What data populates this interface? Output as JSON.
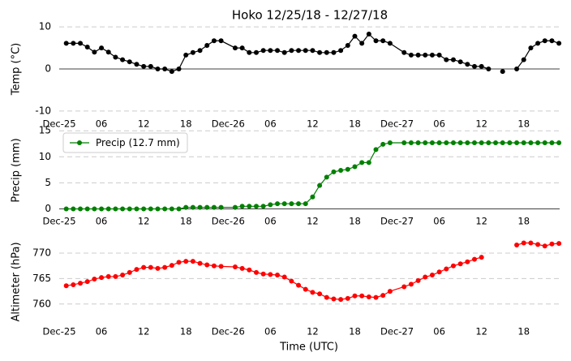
{
  "chart_data": [
    {
      "type": "line",
      "title": "Hoko 12/25/18 - 12/27/18",
      "ylabel": "Temp (°C)",
      "x": [
        1,
        2,
        3,
        4,
        5,
        6,
        7,
        8,
        9,
        10,
        11,
        12,
        13,
        14,
        15,
        16,
        17,
        18,
        19,
        20,
        21,
        22,
        23,
        25,
        26,
        27,
        28,
        29,
        30,
        31,
        32,
        33,
        34,
        35,
        36,
        37,
        38,
        39,
        40,
        41,
        42,
        43,
        44,
        45,
        46,
        47,
        49,
        50,
        51,
        52,
        53,
        54,
        55,
        56,
        57,
        58,
        59,
        60,
        61,
        62,
        63,
        64,
        65,
        66,
        67,
        68,
        69,
        70,
        71
      ],
      "series": [
        {
          "color": "#000000",
          "values": [
            6.1,
            6.1,
            6.1,
            5.2,
            4.0,
            5.0,
            4.0,
            2.8,
            2.2,
            1.7,
            1.1,
            0.6,
            0.6,
            0.0,
            0.0,
            -0.6,
            0.0,
            3.3,
            3.9,
            4.4,
            5.6,
            6.7,
            6.7,
            5.0,
            5.0,
            3.9,
            3.9,
            4.4,
            4.4,
            4.4,
            3.9,
            4.4,
            4.4,
            4.4,
            4.4,
            3.9,
            3.9,
            3.9,
            4.4,
            5.6,
            7.8,
            6.1,
            8.3,
            6.7,
            6.7,
            6.1,
            3.9,
            3.3,
            3.3,
            3.3,
            3.3,
            3.3,
            2.2,
            2.2,
            1.7,
            1.1,
            0.6,
            0.6,
            0.0,
            null,
            -0.6,
            null,
            0.0,
            2.2,
            5.0,
            6.1,
            6.7,
            6.7,
            6.1
          ]
        }
      ],
      "xlim": [
        0,
        71.1
      ],
      "xticks": [
        {
          "value": 0,
          "label": "Dec-25"
        },
        {
          "value": 6,
          "label": "06"
        },
        {
          "value": 12,
          "label": "12"
        },
        {
          "value": 18,
          "label": "18"
        },
        {
          "value": 24,
          "label": "Dec-26"
        },
        {
          "value": 30,
          "label": "06"
        },
        {
          "value": 36,
          "label": "12"
        },
        {
          "value": 42,
          "label": "18"
        },
        {
          "value": 48,
          "label": "Dec-27"
        },
        {
          "value": 54,
          "label": "06"
        },
        {
          "value": 60,
          "label": "12"
        },
        {
          "value": 66,
          "label": "18"
        }
      ],
      "ylim": [
        -11,
        11
      ],
      "yticks": [
        -10,
        0,
        10
      ],
      "grid": true
    },
    {
      "type": "line",
      "ylabel": "Precip (mm)",
      "legend": "upper left",
      "x": [
        1,
        2,
        3,
        4,
        5,
        6,
        7,
        8,
        9,
        10,
        11,
        12,
        13,
        14,
        15,
        16,
        17,
        18,
        19,
        20,
        21,
        22,
        23,
        25,
        26,
        27,
        28,
        29,
        30,
        31,
        32,
        33,
        34,
        35,
        36,
        37,
        38,
        39,
        40,
        41,
        42,
        43,
        44,
        45,
        46,
        47,
        49,
        50,
        51,
        52,
        53,
        54,
        55,
        56,
        57,
        58,
        59,
        60,
        61,
        62,
        63,
        64,
        65,
        66,
        67,
        68,
        69,
        70,
        71
      ],
      "series": [
        {
          "name": "Precip (12.7 mm)",
          "color": "#008000",
          "values": [
            0,
            0,
            0,
            0,
            0,
            0,
            0,
            0,
            0,
            0,
            0,
            0,
            0,
            0,
            0,
            0,
            0,
            0.3,
            0.3,
            0.3,
            0.3,
            0.3,
            0.3,
            0.3,
            0.5,
            0.5,
            0.5,
            0.5,
            0.8,
            1.0,
            1.0,
            1.0,
            1.0,
            1.0,
            2.3,
            4.5,
            6.1,
            7.1,
            7.4,
            7.6,
            8.1,
            8.9,
            8.9,
            11.4,
            12.4,
            12.7,
            12.7,
            12.7,
            12.7,
            12.7,
            12.7,
            12.7,
            12.7,
            12.7,
            12.7,
            12.7,
            12.7,
            12.7,
            12.7,
            12.7,
            12.7,
            12.7,
            12.7,
            12.7,
            12.7,
            12.7,
            12.7,
            12.7,
            12.7
          ]
        }
      ],
      "xlim": [
        0,
        71.1
      ],
      "xticks": [
        {
          "value": 0,
          "label": "Dec-25"
        },
        {
          "value": 6,
          "label": "06"
        },
        {
          "value": 12,
          "label": "12"
        },
        {
          "value": 18,
          "label": "18"
        },
        {
          "value": 24,
          "label": "Dec-26"
        },
        {
          "value": 30,
          "label": "06"
        },
        {
          "value": 36,
          "label": "12"
        },
        {
          "value": 42,
          "label": "18"
        },
        {
          "value": 48,
          "label": "Dec-27"
        },
        {
          "value": 54,
          "label": "06"
        },
        {
          "value": 60,
          "label": "12"
        },
        {
          "value": 66,
          "label": "18"
        }
      ],
      "ylim": [
        -0.7,
        15.5
      ],
      "yticks": [
        0,
        5,
        10,
        15
      ],
      "grid": true
    },
    {
      "type": "line",
      "ylabel": "Altimeter (hPa)",
      "xlabel": "Time (UTC)",
      "x": [
        1,
        2,
        3,
        4,
        5,
        6,
        7,
        8,
        9,
        10,
        11,
        12,
        13,
        14,
        15,
        16,
        17,
        18,
        19,
        20,
        21,
        22,
        23,
        25,
        26,
        27,
        28,
        29,
        30,
        31,
        32,
        33,
        34,
        35,
        36,
        37,
        38,
        39,
        40,
        41,
        42,
        43,
        44,
        45,
        46,
        47,
        49,
        50,
        51,
        52,
        53,
        54,
        55,
        56,
        57,
        58,
        59,
        60,
        61,
        62,
        63,
        64,
        65,
        66,
        67,
        68,
        69,
        70,
        71
      ],
      "series": [
        {
          "color": "#ff0000",
          "values": [
            763.6,
            763.8,
            764.1,
            764.4,
            764.9,
            765.2,
            765.4,
            765.4,
            765.7,
            766.2,
            766.8,
            767.2,
            767.2,
            767.0,
            767.2,
            767.6,
            768.2,
            768.4,
            768.4,
            768.0,
            767.7,
            767.5,
            767.4,
            767.3,
            767.0,
            766.7,
            766.2,
            765.9,
            765.8,
            765.7,
            765.3,
            764.5,
            763.7,
            762.9,
            762.3,
            762.0,
            761.3,
            761.0,
            760.9,
            761.1,
            761.6,
            761.6,
            761.4,
            761.3,
            761.7,
            762.5,
            763.4,
            763.9,
            764.6,
            765.3,
            765.7,
            766.3,
            766.9,
            767.5,
            767.9,
            768.3,
            768.8,
            769.2,
            null,
            null,
            null,
            null,
            771.6,
            772.0,
            772.0,
            771.7,
            771.4,
            771.8,
            771.9
          ]
        }
      ],
      "xlim": [
        0,
        71.1
      ],
      "xticks": [
        {
          "value": 0,
          "label": "Dec-25"
        },
        {
          "value": 6,
          "label": "06"
        },
        {
          "value": 12,
          "label": "12"
        },
        {
          "value": 18,
          "label": "18"
        },
        {
          "value": 24,
          "label": "Dec-26"
        },
        {
          "value": 30,
          "label": "06"
        },
        {
          "value": 36,
          "label": "12"
        },
        {
          "value": 42,
          "label": "18"
        },
        {
          "value": 48,
          "label": "Dec-27"
        },
        {
          "value": 54,
          "label": "06"
        },
        {
          "value": 60,
          "label": "12"
        },
        {
          "value": 66,
          "label": "18"
        }
      ],
      "ylim": [
        756.3,
        772.4
      ],
      "yticks": [
        760,
        765,
        770
      ],
      "grid": true
    }
  ]
}
